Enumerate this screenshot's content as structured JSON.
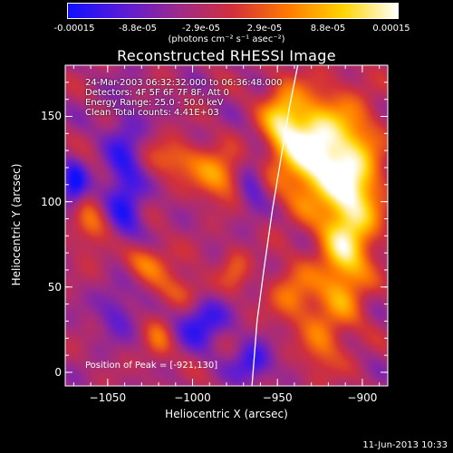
{
  "colorbar": {
    "ticks": [
      "-0.00015",
      "-8.8e-05",
      "-2.9e-05",
      "2.9e-05",
      "8.8e-05",
      "0.00015"
    ],
    "units": "(photons cm⁻² s⁻¹ asec⁻²)",
    "colors": [
      "#1010ff",
      "#5a1bd8",
      "#9c2a8c",
      "#d2303a",
      "#ff7a00",
      "#ffd400",
      "#ffffff"
    ]
  },
  "header": {
    "title": "Reconstructed RHESSI Image",
    "time_range": "24-Mar-2003 06:32:32.000 to 06:36:48.000",
    "detectors": "Detectors: 4F 5F 6F 7F 8F, Att 0",
    "energy": "Energy Range: 25.0 - 50.0 keV",
    "clean": "Clean     Total counts: 4.41E+03",
    "peak": "Position of Peak = [-921,130]"
  },
  "footer": {
    "date": "11-Jun-2013 10:33"
  },
  "chart_data": {
    "type": "heatmap",
    "title": "Reconstructed RHESSI Image",
    "xlabel": "Heliocentric X (arcsec)",
    "ylabel": "Heliocentric Y (arcsec)",
    "xlim": [
      -1075,
      -885
    ],
    "ylim": [
      -8,
      180
    ],
    "xticks": [
      -1050,
      -1000,
      -950,
      -900
    ],
    "xtick_labels": [
      "−1050",
      "−1000",
      "−950",
      "−900"
    ],
    "yticks": [
      0,
      50,
      100,
      150
    ],
    "yticks_labels": [
      "0",
      "50",
      "100",
      "150"
    ],
    "zlim": [
      -0.00015,
      0.00015
    ],
    "peak": [
      -921,
      130
    ],
    "limb": {
      "x": [
        -965,
        -962,
        -958,
        -953,
        -948,
        -943,
        -938
      ],
      "y": [
        -8,
        30,
        60,
        95,
        125,
        155,
        180
      ]
    },
    "sources": [
      {
        "x": -930,
        "y": 130,
        "amp": 1.0,
        "sx": 14,
        "sy": 22
      },
      {
        "x": -905,
        "y": 110,
        "amp": 0.8,
        "sx": 12,
        "sy": 30
      },
      {
        "x": -912,
        "y": 60,
        "amp": 0.55,
        "sx": 10,
        "sy": 25
      },
      {
        "x": -948,
        "y": 148,
        "amp": 0.55,
        "sx": 8,
        "sy": 14
      },
      {
        "x": -985,
        "y": 115,
        "amp": 0.55,
        "sx": 10,
        "sy": 10
      },
      {
        "x": -1010,
        "y": 125,
        "amp": 0.4,
        "sx": 12,
        "sy": 8
      },
      {
        "x": -1030,
        "y": 65,
        "amp": 0.45,
        "sx": 12,
        "sy": 8
      },
      {
        "x": -1060,
        "y": 85,
        "amp": 0.4,
        "sx": 8,
        "sy": 10
      },
      {
        "x": -1005,
        "y": 48,
        "amp": 0.35,
        "sx": 10,
        "sy": 8
      },
      {
        "x": -940,
        "y": 45,
        "amp": 0.45,
        "sx": 10,
        "sy": 12
      },
      {
        "x": -975,
        "y": 60,
        "amp": 0.3,
        "sx": 6,
        "sy": 10
      },
      {
        "x": -1020,
        "y": 20,
        "amp": 0.3,
        "sx": 6,
        "sy": 12
      },
      {
        "x": -925,
        "y": 15,
        "amp": 0.35,
        "sx": 8,
        "sy": 14
      },
      {
        "x": -1040,
        "y": 110,
        "amp": -0.5,
        "sx": 8,
        "sy": 30
      },
      {
        "x": -995,
        "y": 30,
        "amp": -0.55,
        "sx": 10,
        "sy": 10
      },
      {
        "x": -965,
        "y": 5,
        "amp": -0.5,
        "sx": 8,
        "sy": 8
      },
      {
        "x": -1070,
        "y": 110,
        "amp": -0.55,
        "sx": 5,
        "sy": 10
      },
      {
        "x": -965,
        "y": 110,
        "amp": -0.35,
        "sx": 6,
        "sy": 12
      },
      {
        "x": -1045,
        "y": 35,
        "amp": -0.3,
        "sx": 8,
        "sy": 10
      }
    ]
  }
}
